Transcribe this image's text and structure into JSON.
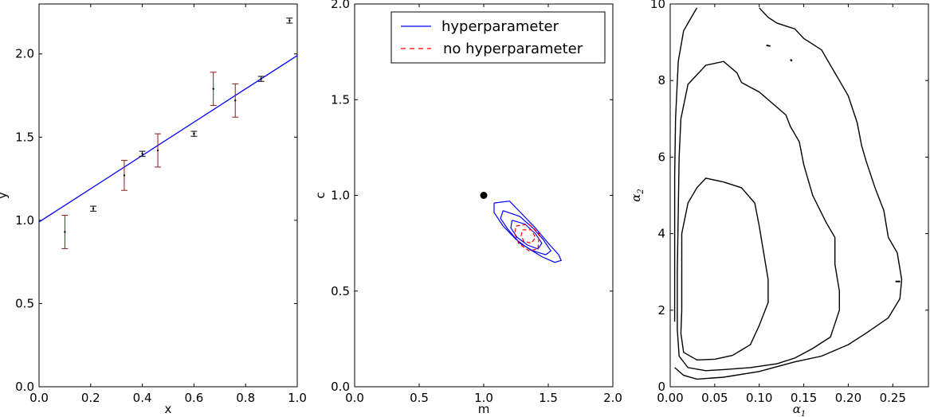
{
  "chart_data": [
    {
      "type": "scatter",
      "xlabel": "x",
      "ylabel": "y",
      "xlim": [
        0.0,
        1.0
      ],
      "ylim": [
        0.0,
        2.3
      ],
      "xticks": [
        "0.0",
        "0.2",
        "0.4",
        "0.6",
        "0.8",
        "1.0"
      ],
      "yticks": [
        "0.0",
        "0.5",
        "1.0",
        "1.5",
        "2.0"
      ],
      "fit_line": {
        "x": [
          0.0,
          1.0
        ],
        "y": [
          0.99,
          1.99
        ],
        "color": "#0000ff"
      },
      "points": [
        {
          "x": 0.1,
          "y": 0.93,
          "err": 0.1,
          "color": "#8b1a1a"
        },
        {
          "x": 0.21,
          "y": 1.07,
          "err": 0.015,
          "color": "#000000"
        },
        {
          "x": 0.33,
          "y": 1.27,
          "err": 0.09,
          "color": "#8b1a1a"
        },
        {
          "x": 0.4,
          "y": 1.4,
          "err": 0.015,
          "color": "#000000"
        },
        {
          "x": 0.46,
          "y": 1.42,
          "err": 0.1,
          "color": "#8b1a1a"
        },
        {
          "x": 0.6,
          "y": 1.52,
          "err": 0.015,
          "color": "#000000"
        },
        {
          "x": 0.675,
          "y": 1.79,
          "err": 0.1,
          "color": "#8b1a1a"
        },
        {
          "x": 0.76,
          "y": 1.72,
          "err": 0.1,
          "color": "#8b1a1a"
        },
        {
          "x": 0.86,
          "y": 1.85,
          "err": 0.015,
          "color": "#000000"
        },
        {
          "x": 0.97,
          "y": 2.2,
          "err": 0.015,
          "color": "#000000"
        }
      ]
    },
    {
      "type": "contour",
      "xlabel": "m",
      "ylabel": "c",
      "xlim": [
        0.0,
        2.0
      ],
      "ylim": [
        0.0,
        2.0
      ],
      "xticks": [
        "0.0",
        "0.5",
        "1.0",
        "1.5",
        "2.0"
      ],
      "yticks": [
        "0.0",
        "0.5",
        "1.0",
        "1.5",
        "2.0"
      ],
      "legend_position": "top-right",
      "true_point": {
        "x": 1.0,
        "y": 1.0
      },
      "series": [
        {
          "name": "hyperparameter",
          "color": "#0000ff",
          "dash": "solid",
          "contours": [
            [
              [
                1.08,
                0.96
              ],
              [
                1.2,
                0.97
              ],
              [
                1.3,
                0.9
              ],
              [
                1.4,
                0.83
              ],
              [
                1.5,
                0.75
              ],
              [
                1.58,
                0.69
              ],
              [
                1.6,
                0.66
              ],
              [
                1.55,
                0.65
              ],
              [
                1.45,
                0.68
              ],
              [
                1.35,
                0.72
              ],
              [
                1.25,
                0.77
              ],
              [
                1.15,
                0.84
              ],
              [
                1.08,
                0.91
              ],
              [
                1.08,
                0.96
              ]
            ],
            [
              [
                1.15,
                0.92
              ],
              [
                1.28,
                0.89
              ],
              [
                1.38,
                0.83
              ],
              [
                1.46,
                0.77
              ],
              [
                1.52,
                0.71
              ],
              [
                1.48,
                0.69
              ],
              [
                1.38,
                0.71
              ],
              [
                1.28,
                0.75
              ],
              [
                1.19,
                0.82
              ],
              [
                1.13,
                0.88
              ],
              [
                1.15,
                0.92
              ]
            ],
            [
              [
                1.22,
                0.87
              ],
              [
                1.32,
                0.85
              ],
              [
                1.4,
                0.8
              ],
              [
                1.45,
                0.75
              ],
              [
                1.42,
                0.72
              ],
              [
                1.34,
                0.74
              ],
              [
                1.26,
                0.78
              ],
              [
                1.21,
                0.83
              ],
              [
                1.22,
                0.87
              ]
            ]
          ]
        },
        {
          "name": "no hyperparameter",
          "color": "#ff0000",
          "dash": "dashed",
          "contours": [
            [
              [
                1.25,
                0.84
              ],
              [
                1.35,
                0.85
              ],
              [
                1.43,
                0.8
              ],
              [
                1.42,
                0.72
              ],
              [
                1.35,
                0.71
              ],
              [
                1.27,
                0.75
              ],
              [
                1.24,
                0.8
              ],
              [
                1.25,
                0.84
              ]
            ],
            [
              [
                1.3,
                0.82
              ],
              [
                1.37,
                0.82
              ],
              [
                1.4,
                0.78
              ],
              [
                1.37,
                0.75
              ],
              [
                1.31,
                0.76
              ],
              [
                1.29,
                0.79
              ],
              [
                1.3,
                0.82
              ]
            ]
          ]
        }
      ]
    },
    {
      "type": "contour",
      "xlabel": "α1",
      "ylabel": "α2",
      "xlim": [
        0.0,
        0.29
      ],
      "ylim": [
        0,
        10
      ],
      "xticks": [
        "0.00",
        "0.05",
        "0.10",
        "0.15",
        "0.20",
        "0.25"
      ],
      "yticks": [
        "0",
        "2",
        "4",
        "6",
        "8",
        "10"
      ],
      "series": [
        {
          "name": "",
          "color": "#000000",
          "contours": [
            [
              [
                0.013,
                2.0
              ],
              [
                0.013,
                4.0
              ],
              [
                0.02,
                4.8
              ],
              [
                0.03,
                5.2
              ],
              [
                0.04,
                5.45
              ],
              [
                0.06,
                5.35
              ],
              [
                0.08,
                5.2
              ],
              [
                0.095,
                4.8
              ],
              [
                0.1,
                4.2
              ],
              [
                0.105,
                3.5
              ],
              [
                0.11,
                2.8
              ],
              [
                0.11,
                2.2
              ],
              [
                0.1,
                1.6
              ],
              [
                0.09,
                1.1
              ],
              [
                0.07,
                0.82
              ],
              [
                0.05,
                0.72
              ],
              [
                0.03,
                0.7
              ],
              [
                0.015,
                0.9
              ],
              [
                0.012,
                1.4
              ],
              [
                0.013,
                2.0
              ]
            ],
            [
              [
                0.008,
                3.0
              ],
              [
                0.01,
                6.0
              ],
              [
                0.012,
                7.0
              ],
              [
                0.02,
                7.9
              ],
              [
                0.04,
                8.4
              ],
              [
                0.06,
                8.5
              ],
              [
                0.075,
                8.2
              ],
              [
                0.08,
                7.95
              ],
              [
                0.1,
                7.7
              ],
              [
                0.12,
                7.3
              ],
              [
                0.13,
                7.1
              ],
              [
                0.135,
                6.8
              ],
              [
                0.145,
                6.4
              ],
              [
                0.15,
                5.8
              ],
              [
                0.16,
                5.0
              ],
              [
                0.175,
                4.3
              ],
              [
                0.185,
                3.9
              ],
              [
                0.185,
                3.2
              ],
              [
                0.19,
                2.5
              ],
              [
                0.19,
                2.0
              ],
              [
                0.18,
                1.3
              ],
              [
                0.16,
                1.0
              ],
              [
                0.14,
                0.75
              ],
              [
                0.12,
                0.6
              ],
              [
                0.09,
                0.5
              ],
              [
                0.06,
                0.45
              ],
              [
                0.04,
                0.42
              ],
              [
                0.02,
                0.5
              ],
              [
                0.01,
                0.8
              ],
              [
                0.008,
                1.5
              ],
              [
                0.008,
                3.0
              ]
            ],
            [
              [
                0.005,
                1.7
              ],
              [
                0.005,
                5.5
              ],
              [
                0.006,
                7.0
              ],
              [
                0.009,
                8.5
              ],
              [
                0.015,
                9.3
              ],
              [
                0.025,
                9.7
              ],
              [
                0.03,
                9.9
              ]
            ],
            [
              [
                0.1,
                9.9
              ],
              [
                0.11,
                9.65
              ],
              [
                0.12,
                9.5
              ],
              [
                0.14,
                9.35
              ],
              [
                0.15,
                9.1
              ],
              [
                0.17,
                8.8
              ],
              [
                0.18,
                8.4
              ],
              [
                0.19,
                8.0
              ],
              [
                0.2,
                7.6
              ],
              [
                0.21,
                6.9
              ],
              [
                0.215,
                6.3
              ],
              [
                0.22,
                5.9
              ],
              [
                0.23,
                5.2
              ],
              [
                0.24,
                4.6
              ],
              [
                0.245,
                3.9
              ],
              [
                0.255,
                3.5
              ],
              [
                0.26,
                2.8
              ],
              [
                0.258,
                2.3
              ],
              [
                0.245,
                1.8
              ],
              [
                0.22,
                1.4
              ],
              [
                0.2,
                1.1
              ],
              [
                0.17,
                0.8
              ],
              [
                0.14,
                0.65
              ],
              [
                0.1,
                0.4
              ],
              [
                0.06,
                0.25
              ],
              [
                0.03,
                0.2
              ],
              [
                0.015,
                0.3
              ],
              [
                0.005,
                0.5
              ]
            ]
          ]
        }
      ]
    }
  ]
}
